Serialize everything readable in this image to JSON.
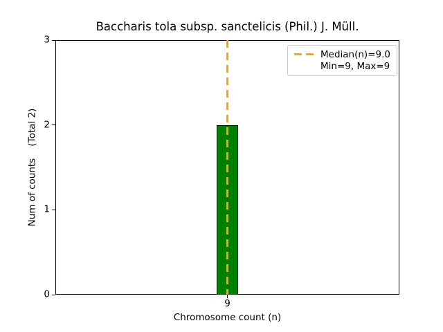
{
  "chart_data": {
    "type": "bar",
    "title": "Baccharis tola subsp. sanctelicis (Phil.) J. Müll.",
    "xlabel": "Chromosome count (n)",
    "ylabel": "Num of counts    (Total 2)",
    "categories": [
      "9"
    ],
    "values": [
      2
    ],
    "ylim": [
      0,
      3
    ],
    "yticks": [
      0,
      1,
      2,
      3
    ],
    "xticks": [
      "9"
    ],
    "grid": false,
    "bar_color": "#008000",
    "bar_edge_color": "#000000",
    "median_line": {
      "value": 9.0,
      "color": "#FFA500",
      "style": "dashed",
      "orientation": "vertical"
    },
    "legend": {
      "position": "top-right",
      "entries": [
        {
          "label": "Median(n)=9.0",
          "sample": "dashed-line",
          "color": "#FFA500"
        },
        {
          "label": "Min=9, Max=9",
          "sample": "none",
          "color": ""
        }
      ]
    }
  }
}
